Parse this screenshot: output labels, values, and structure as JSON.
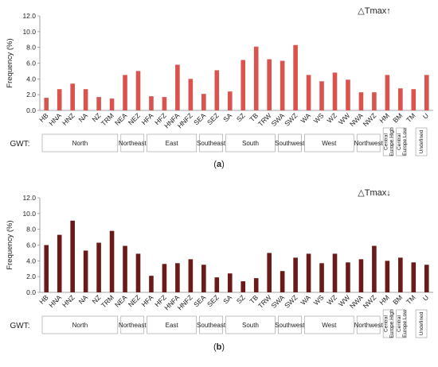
{
  "chart_data": [
    {
      "type": "bar",
      "panel_label": "(a)",
      "title": "△Tmax↑",
      "ylabel": "Frequency (%)",
      "group_axis_label": "GWT:",
      "ylim": [
        0,
        12
      ],
      "yticks": [
        "0.0",
        "2.0",
        "4.0",
        "6.0",
        "8.0",
        "10.0",
        "12.0"
      ],
      "categories": [
        "HB",
        "HNA",
        "HNZ",
        "NA",
        "NZ",
        "TRM",
        "NEA",
        "NEZ",
        "HFA",
        "HFZ",
        "HNFA",
        "HNFZ",
        "SEA",
        "SEZ",
        "SA",
        "SZ",
        "TB",
        "TRW",
        "SWA",
        "SWZ",
        "WA",
        "WS",
        "WZ",
        "WW",
        "NWA",
        "NWZ",
        "HM",
        "BM",
        "TM",
        "U"
      ],
      "values": [
        1.6,
        2.7,
        3.4,
        2.7,
        1.7,
        1.5,
        4.5,
        5.0,
        1.8,
        1.7,
        5.8,
        4.0,
        2.1,
        5.1,
        2.4,
        6.4,
        8.1,
        6.5,
        6.3,
        8.3,
        4.5,
        3.7,
        4.8,
        3.9,
        2.3,
        2.3,
        4.5,
        2.8,
        2.7,
        4.5
      ],
      "color": "#d9534f",
      "groups": [
        {
          "label": "North",
          "start": 0,
          "end": 5
        },
        {
          "label": "Northeast",
          "start": 6,
          "end": 7
        },
        {
          "label": "East",
          "start": 8,
          "end": 11
        },
        {
          "label": "Southeast",
          "start": 12,
          "end": 13
        },
        {
          "label": "South",
          "start": 14,
          "end": 17
        },
        {
          "label": "Southwest",
          "start": 18,
          "end": 19
        },
        {
          "label": "West",
          "start": 20,
          "end": 23
        },
        {
          "label": "Northwest",
          "start": 24,
          "end": 25
        },
        {
          "label": "Central Europe High",
          "start": 26,
          "end": 26,
          "rotated": true
        },
        {
          "label": "Central Europe Low",
          "start": 27,
          "end": 27,
          "rotated": true
        },
        {
          "label": "Undefined",
          "start": 28,
          "end": 29,
          "rotated": true
        }
      ],
      "grid": false
    },
    {
      "type": "bar",
      "panel_label": "(b)",
      "title": "△Tmax↓",
      "ylabel": "Frequency (%)",
      "group_axis_label": "GWT:",
      "ylim": [
        0,
        12
      ],
      "yticks": [
        "0.0",
        "2.0",
        "4.0",
        "6.0",
        "8.0",
        "10.0",
        "12.0"
      ],
      "categories": [
        "HB",
        "HNA",
        "HNZ",
        "NA",
        "NZ",
        "TRM",
        "NEA",
        "NEZ",
        "HFA",
        "HFZ",
        "HNFA",
        "HNFZ",
        "SEA",
        "SEZ",
        "SA",
        "SZ",
        "TB",
        "TRW",
        "SWA",
        "SWZ",
        "WA",
        "WS",
        "WZ",
        "WW",
        "NWA",
        "NWZ",
        "HM",
        "BM",
        "TM",
        "U"
      ],
      "values": [
        6.0,
        7.3,
        9.1,
        5.3,
        6.3,
        7.8,
        5.9,
        4.9,
        2.1,
        3.6,
        3.7,
        4.2,
        3.5,
        1.9,
        2.4,
        1.4,
        1.8,
        5.0,
        2.7,
        4.4,
        4.9,
        3.7,
        4.9,
        3.8,
        4.2,
        5.9,
        4.0,
        4.4,
        3.8,
        3.5
      ],
      "color": "#6b1a1a",
      "groups": [
        {
          "label": "North",
          "start": 0,
          "end": 5
        },
        {
          "label": "Northeast",
          "start": 6,
          "end": 7
        },
        {
          "label": "East",
          "start": 8,
          "end": 11
        },
        {
          "label": "Southeast",
          "start": 12,
          "end": 13
        },
        {
          "label": "South",
          "start": 14,
          "end": 17
        },
        {
          "label": "Southwest",
          "start": 18,
          "end": 19
        },
        {
          "label": "West",
          "start": 20,
          "end": 23
        },
        {
          "label": "Northwest",
          "start": 24,
          "end": 25
        },
        {
          "label": "Central Europe High",
          "start": 26,
          "end": 26,
          "rotated": true
        },
        {
          "label": "Central Europe Low",
          "start": 27,
          "end": 27,
          "rotated": true
        },
        {
          "label": "Undefined",
          "start": 28,
          "end": 29,
          "rotated": true
        }
      ],
      "grid": false
    }
  ]
}
